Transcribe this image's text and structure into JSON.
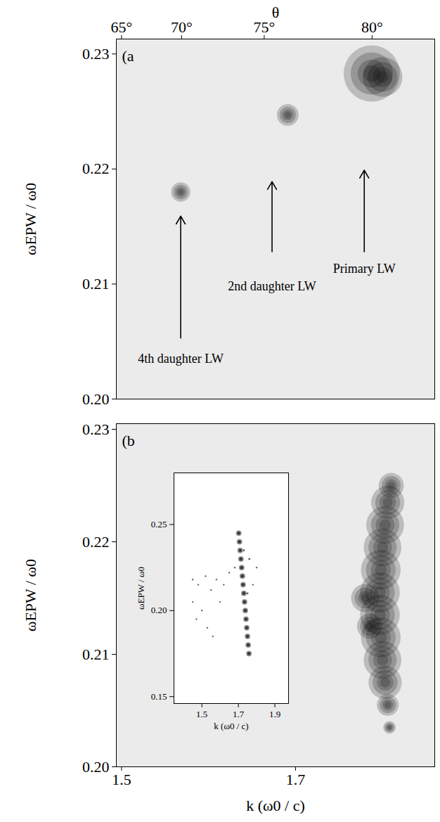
{
  "chart_data": [
    {
      "type": "scatter",
      "title": "(a",
      "color": "#000000",
      "ylabel": "ωEPW / ω0",
      "x2label": "θ",
      "xlim": [
        1.494,
        1.86
      ],
      "ylim": [
        0.2,
        0.2313
      ],
      "x2ticks": [
        {
          "value": 1.5,
          "label": "65°"
        },
        {
          "value": 1.569,
          "label": "70°"
        },
        {
          "value": 1.664,
          "label": "75°"
        },
        {
          "value": 1.788,
          "label": "80°"
        }
      ],
      "yticks": [
        {
          "value": 0.2,
          "label": "0.20"
        },
        {
          "value": 0.21,
          "label": "0.21"
        },
        {
          "value": 0.22,
          "label": "0.22"
        },
        {
          "value": 0.23,
          "label": "0.23"
        }
      ],
      "x": [
        1.7876,
        1.8,
        1.691,
        1.568
      ],
      "y": [
        0.2283,
        0.228,
        0.2247,
        0.218
      ],
      "intensity": [
        1.0,
        0.5,
        0.15,
        0.12
      ],
      "annotations": [
        {
          "text": "Primary LW",
          "x": 1.779,
          "y": 0.2113,
          "arrow_from": [
            1.779,
            0.2128
          ],
          "arrow_to": [
            1.779,
            0.2199
          ]
        },
        {
          "text": "2nd daughter LW",
          "x": 1.673,
          "y": 0.2098,
          "arrow_from": [
            1.673,
            0.2128
          ],
          "arrow_to": [
            1.673,
            0.2189
          ]
        },
        {
          "text": "4th daughter LW",
          "x": 1.568,
          "y": 0.2035,
          "arrow_from": [
            1.568,
            0.2053
          ],
          "arrow_to": [
            1.568,
            0.2159
          ]
        }
      ]
    },
    {
      "type": "scatter",
      "title": "(b",
      "color": "#000000",
      "ylabel": "ωEPW / ω0",
      "xlabel": "k (ω0 / c)",
      "xlim": [
        1.494,
        1.86
      ],
      "ylim": [
        0.2,
        0.2305
      ],
      "xticks": [
        1.5,
        1.7
      ],
      "yticks": [
        {
          "value": 0.2,
          "label": "0.20"
        },
        {
          "value": 0.21,
          "label": "0.21"
        },
        {
          "value": 0.22,
          "label": "0.22"
        },
        {
          "value": 0.23,
          "label": "0.23"
        }
      ],
      "x": [
        1.808,
        1.806,
        1.803,
        1.8,
        1.798,
        1.797,
        1.797,
        1.798,
        1.8,
        1.803,
        1.806,
        1.81,
        1.78,
        1.785
      ],
      "y": [
        0.2035,
        0.2055,
        0.2075,
        0.2095,
        0.2115,
        0.2135,
        0.2155,
        0.2175,
        0.2195,
        0.2215,
        0.2235,
        0.225,
        0.215,
        0.2125
      ],
      "intensity": [
        0.05,
        0.15,
        0.35,
        0.45,
        0.5,
        0.5,
        0.5,
        0.5,
        0.45,
        0.45,
        0.35,
        0.2,
        0.25,
        0.2
      ]
    },
    {
      "type": "scatter",
      "color": "#000000",
      "ylabel": "ωEPW / ω0",
      "xlabel": "k (ω0 / c)",
      "xlim": [
        1.347,
        1.975
      ],
      "ylim": [
        0.146,
        0.28
      ],
      "xticks": [
        1.5,
        1.7,
        1.9
      ],
      "yticks": [
        {
          "value": 0.15,
          "label": "0.15"
        },
        {
          "value": 0.2,
          "label": "0.20"
        },
        {
          "value": 0.25,
          "label": "0.25"
        }
      ],
      "x": [
        1.702,
        1.706,
        1.71,
        1.714,
        1.718,
        1.722,
        1.726,
        1.73,
        1.734,
        1.738,
        1.742,
        1.746,
        1.75,
        1.754,
        1.758,
        1.73,
        1.76,
        1.8,
        1.78,
        1.75,
        1.45,
        1.48,
        1.52,
        1.55,
        1.58,
        1.62,
        1.65,
        1.68,
        1.47,
        1.5,
        1.53,
        1.6,
        1.45,
        1.56
      ],
      "y": [
        0.245,
        0.24,
        0.235,
        0.23,
        0.225,
        0.22,
        0.215,
        0.21,
        0.205,
        0.2,
        0.195,
        0.19,
        0.185,
        0.18,
        0.175,
        0.235,
        0.23,
        0.225,
        0.215,
        0.21,
        0.218,
        0.215,
        0.22,
        0.212,
        0.218,
        0.215,
        0.222,
        0.225,
        0.195,
        0.2,
        0.19,
        0.205,
        0.205,
        0.185
      ],
      "intensity": [
        1,
        1,
        1,
        1,
        1,
        1,
        1,
        1,
        1,
        1,
        1,
        1,
        1,
        1,
        1,
        0.15,
        0.15,
        0.1,
        0.1,
        0.15,
        0.1,
        0.1,
        0.1,
        0.1,
        0.1,
        0.1,
        0.1,
        0.1,
        0.1,
        0.1,
        0.1,
        0.1,
        0.1,
        0.1
      ]
    }
  ]
}
